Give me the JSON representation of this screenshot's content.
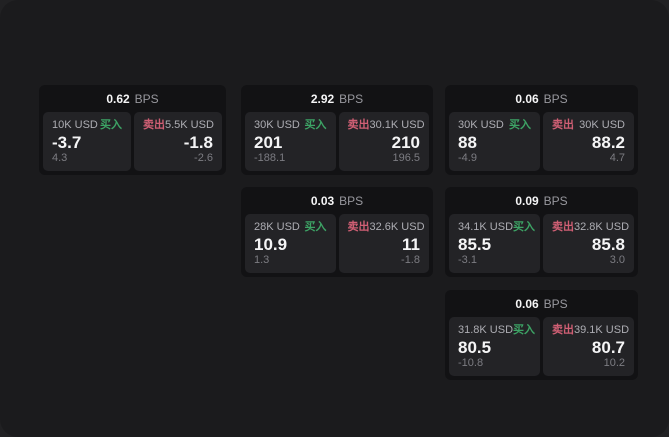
{
  "ui": {
    "buy_label": "买入",
    "sell_label": "卖出",
    "bps_unit": "BPS"
  },
  "colors": {
    "bg": "#212123",
    "panel": "#1b1b1d",
    "card": "#121214",
    "cell": "#232326",
    "buy_green": "#3da365",
    "sell_red": "#d05f74",
    "value_white": "#f5f5f6",
    "label_gray": "#adadb3",
    "delta_gray": "#7c7c82",
    "bps_gray": "#98989e"
  },
  "cards": [
    {
      "bps": "0.62",
      "grid": {
        "col": 1,
        "row": 1
      },
      "buy": {
        "notional": "10K USD",
        "price": "-3.7",
        "pnl": "4.3"
      },
      "sell": {
        "notional": "5.5K USD",
        "price": "-1.8",
        "pnl": "-2.6"
      }
    },
    {
      "bps": "2.92",
      "grid": {
        "col": 2,
        "row": 1
      },
      "buy": {
        "notional": "30K USD",
        "price": "201",
        "pnl": "-188.1"
      },
      "sell": {
        "notional": "30.1K USD",
        "price": "210",
        "pnl": "196.5"
      }
    },
    {
      "bps": "0.06",
      "grid": {
        "col": 3,
        "row": 1
      },
      "buy": {
        "notional": "30K USD",
        "price": "88",
        "pnl": "-4.9"
      },
      "sell": {
        "notional": "30K USD",
        "price": "88.2",
        "pnl": "4.7"
      }
    },
    {
      "bps": "0.03",
      "grid": {
        "col": 2,
        "row": 2
      },
      "buy": {
        "notional": "28K USD",
        "price": "10.9",
        "pnl": "1.3"
      },
      "sell": {
        "notional": "32.6K USD",
        "price": "11",
        "pnl": "-1.8"
      }
    },
    {
      "bps": "0.09",
      "grid": {
        "col": 3,
        "row": 2
      },
      "buy": {
        "notional": "34.1K USD",
        "price": "85.5",
        "pnl": "-3.1"
      },
      "sell": {
        "notional": "32.8K USD",
        "price": "85.8",
        "pnl": "3.0"
      }
    },
    {
      "bps": "0.06",
      "grid": {
        "col": 3,
        "row": 3
      },
      "buy": {
        "notional": "31.8K USD",
        "price": "80.5",
        "pnl": "-10.8"
      },
      "sell": {
        "notional": "39.1K USD",
        "price": "80.7",
        "pnl": "10.2"
      }
    }
  ]
}
